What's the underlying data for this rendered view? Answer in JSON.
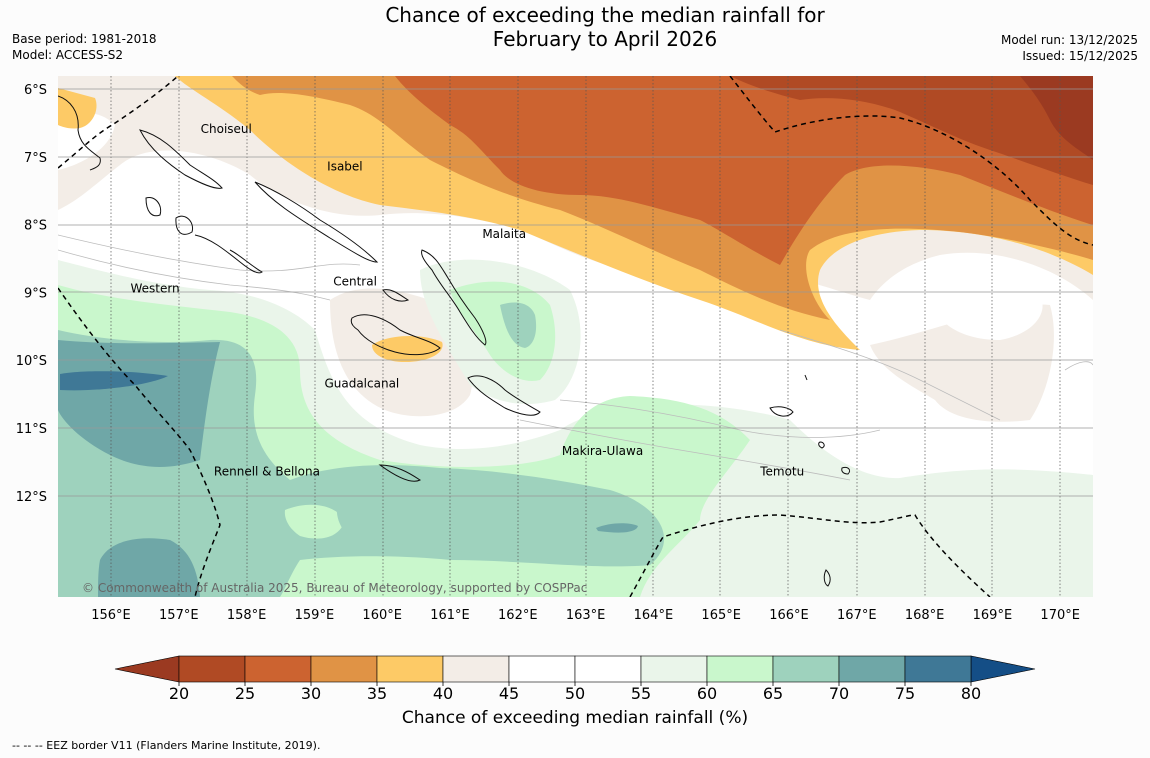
{
  "title_line1": "Chance of exceeding the median rainfall for",
  "title_line2": "February to April 2026",
  "base_period": "Base period: 1981-2018",
  "model": "Model: ACCESS-S2",
  "model_run": "Model run: 13/12/2025",
  "issued": "Issued: 15/12/2025",
  "copyright": "© Commonwealth of Australia 2025, Bureau of Meteorology, supported by COSPPac",
  "footnote": "--  --  -- EEZ border V11 (Flanders Marine Institute, 2019).",
  "colorbar": {
    "label": "Chance of exceeding median rainfall (%)",
    "ticks": [
      "20",
      "25",
      "30",
      "35",
      "40",
      "45",
      "50",
      "55",
      "60",
      "65",
      "70",
      "75",
      "80"
    ],
    "colors": [
      "#b04a24",
      "#cc6330",
      "#e09345",
      "#fdca66",
      "#f3ede7",
      "#ffffff",
      "#ffffff",
      "#eaf5ea",
      "#c9f7cc",
      "#9ed2bd",
      "#6fa7a7",
      "#3f7896"
    ],
    "under_color": "#9b3a21",
    "over_color": "#144e86"
  },
  "axes": {
    "lat_labels": [
      "6°S",
      "7°S",
      "8°S",
      "9°S",
      "10°S",
      "11°S",
      "12°S"
    ],
    "lon_labels": [
      "156°E",
      "157°E",
      "158°E",
      "159°E",
      "160°E",
      "161°E",
      "162°E",
      "163°E",
      "164°E",
      "165°E",
      "166°E",
      "167°E",
      "168°E",
      "169°E",
      "170°E"
    ]
  },
  "regions": [
    {
      "name": "Choiseul",
      "lon": 157.7,
      "lat": -6.65
    },
    {
      "name": "Isabel",
      "lon": 159.45,
      "lat": -7.2
    },
    {
      "name": "Malaita",
      "lon": 161.8,
      "lat": -8.2
    },
    {
      "name": "Central",
      "lon": 159.6,
      "lat": -8.9
    },
    {
      "name": "Western",
      "lon": 156.65,
      "lat": -9.0
    },
    {
      "name": "Guadalcanal",
      "lon": 159.7,
      "lat": -10.4
    },
    {
      "name": "Makira-Ulawa",
      "lon": 163.25,
      "lat": -11.4
    },
    {
      "name": "Temotu",
      "lon": 165.9,
      "lat": -11.7
    },
    {
      "name": "Rennell & Bellona",
      "lon": 158.3,
      "lat": -11.7
    }
  ]
}
